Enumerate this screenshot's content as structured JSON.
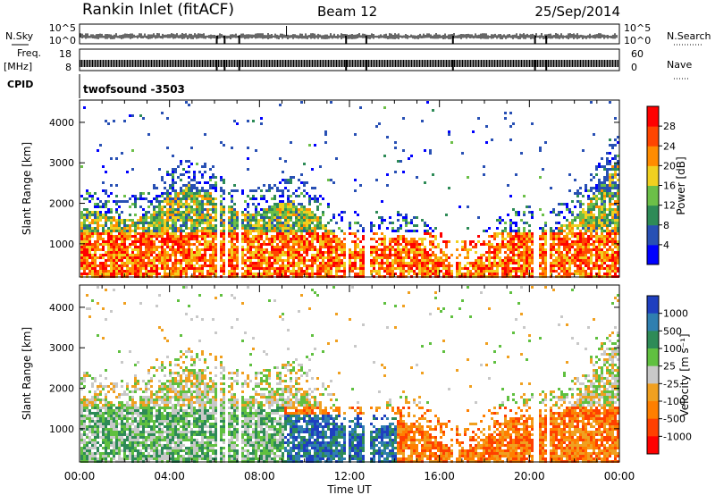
{
  "header": {
    "site": "Rankin Inlet (fitACF)",
    "beam": "Beam 12",
    "date": "25/Sep/2014"
  },
  "strips": {
    "nsky_label": "N.Sky",
    "nsky_ticks": [
      "10^5",
      "10^0"
    ],
    "nsearch_label": "N.Search",
    "nsearch_ticks": [
      "10^5",
      "10^0"
    ],
    "freq_label": "Freq.",
    "freq_unit": "[MHz]",
    "freq_ticks": [
      "18",
      "8"
    ],
    "nave_label": "Nave",
    "nave_ticks": [
      "60",
      "0"
    ],
    "cpid_label": "CPID",
    "cpid_value": "twofsound -3503"
  },
  "chart_data": [
    {
      "type": "heatmap",
      "name": "power",
      "x_ticks": [
        "00:00",
        "04:00",
        "08:00",
        "12:00",
        "16:00",
        "20:00",
        "00:00"
      ],
      "xlim_hours": [
        0,
        24
      ],
      "ylabel": "Slant Range [km]",
      "y_ticks": [
        1000,
        2000,
        3000,
        4000
      ],
      "ylim": [
        180,
        4550
      ],
      "colorbar": {
        "label": "Power [dB]",
        "ticks": [
          "4",
          "8",
          "12",
          "16",
          "20",
          "24",
          "28"
        ],
        "colors": [
          "#0000ff",
          "#2850b4",
          "#2e8b57",
          "#6cbf48",
          "#f0d020",
          "#ff8c00",
          "#ff4500",
          "#ff0000"
        ]
      }
    },
    {
      "type": "heatmap",
      "name": "velocity",
      "x_ticks": [
        "00:00",
        "04:00",
        "08:00",
        "12:00",
        "16:00",
        "20:00",
        "00:00"
      ],
      "xlim_hours": [
        0,
        24
      ],
      "xlabel": "Time UT",
      "ylabel": "Slant Range [km]",
      "y_ticks": [
        1000,
        2000,
        3000,
        4000
      ],
      "ylim": [
        180,
        4550
      ],
      "colorbar": {
        "label": "Velocity [m s⁻¹]",
        "ticks": [
          "1000",
          "500",
          "100",
          "25",
          "-25",
          "-100",
          "-500",
          "-1000"
        ],
        "colors": [
          "#1f3fbf",
          "#2f7fb0",
          "#2e8b57",
          "#60c040",
          "#c8c8c8",
          "#f0a020",
          "#ff7f00",
          "#ff4000",
          "#ff0000"
        ]
      }
    }
  ]
}
